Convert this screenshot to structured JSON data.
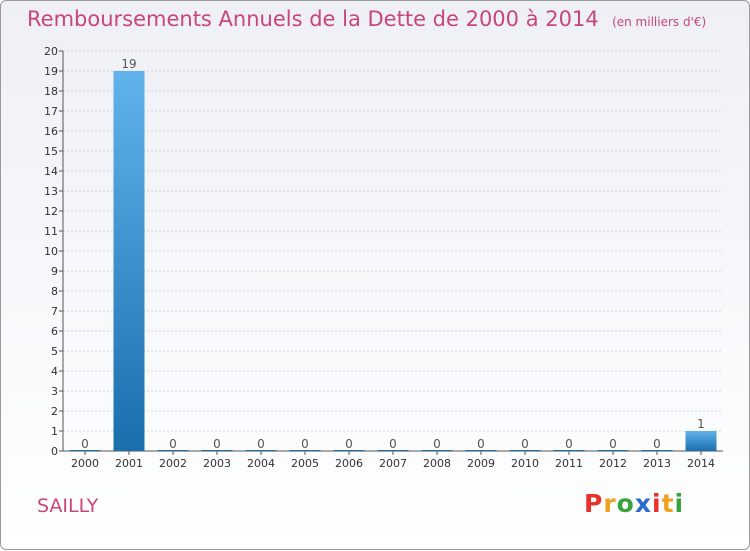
{
  "header": {
    "title": "Remboursements Annuels de la Dette de 2000 à 2014",
    "unit": "(en milliers d'€)"
  },
  "footer": {
    "commune": "SAILLY",
    "logo_letters": [
      "P",
      "r",
      "o",
      "x",
      "i",
      "t",
      "i"
    ]
  },
  "colors": {
    "title": "#c8457d",
    "bar_top": "#62b3ec",
    "bar_bottom": "#1a6eac",
    "grid": "#d0d4e0",
    "logo": [
      "#e8312b",
      "#f0a020",
      "#3aa23a",
      "#2b6bcc",
      "#e8312b",
      "#f0a020",
      "#3aa23a"
    ]
  },
  "chart_data": {
    "type": "bar",
    "categories": [
      "2000",
      "2001",
      "2002",
      "2003",
      "2004",
      "2005",
      "2006",
      "2007",
      "2008",
      "2009",
      "2010",
      "2011",
      "2012",
      "2013",
      "2014"
    ],
    "values": [
      0,
      19,
      0,
      0,
      0,
      0,
      0,
      0,
      0,
      0,
      0,
      0,
      0,
      0,
      1
    ],
    "data_labels": [
      "0",
      "19",
      "0",
      "0",
      "0",
      "0",
      "0",
      "0",
      "0",
      "0",
      "0",
      "0",
      "0",
      "0",
      "1"
    ],
    "y_ticks": [
      0,
      1,
      2,
      3,
      4,
      5,
      6,
      7,
      8,
      9,
      10,
      11,
      12,
      13,
      14,
      15,
      16,
      17,
      18,
      19,
      20
    ],
    "ylim": [
      0,
      20
    ],
    "grid": "horizontal"
  }
}
